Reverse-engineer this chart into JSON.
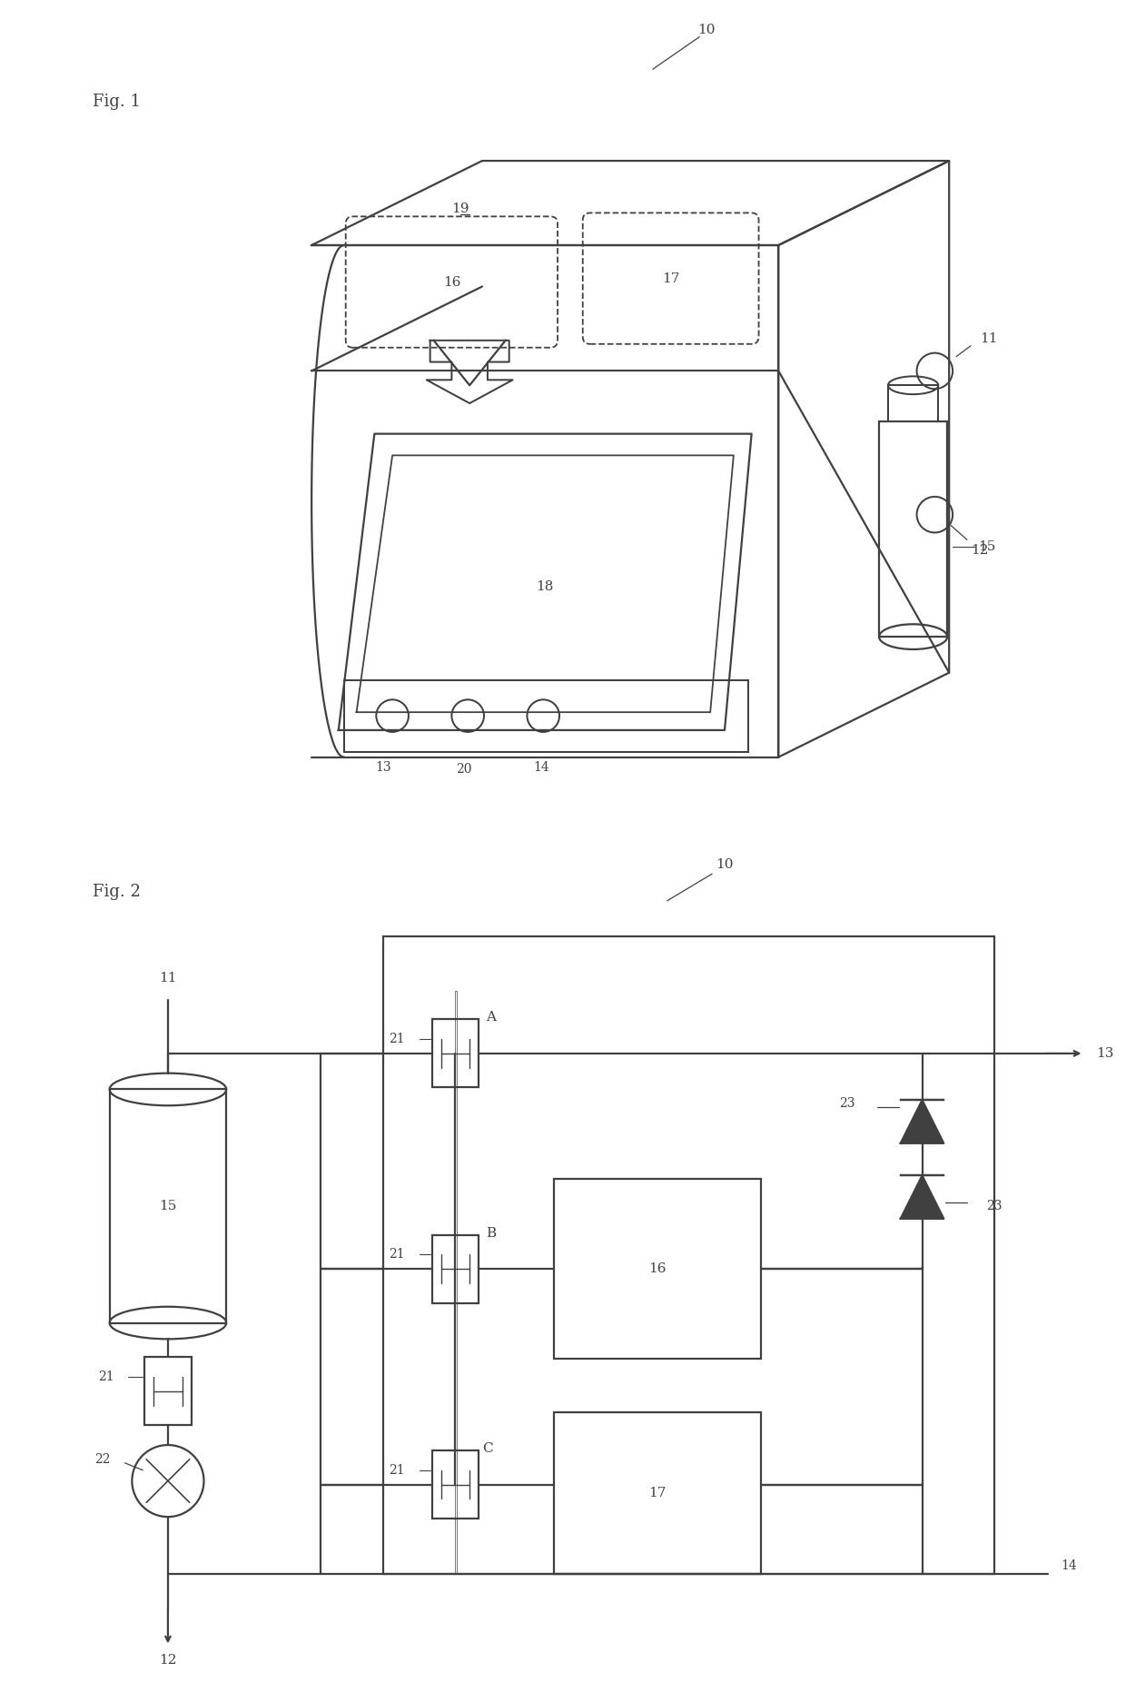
{
  "bg": "#ffffff",
  "lc": "#404040",
  "lw": 1.6,
  "fs": 12,
  "fig1_label": "Fig. 1",
  "fig2_label": "Fig. 2",
  "refs": {
    "10a": "10",
    "11a": "11",
    "12a": "12",
    "13a": "13",
    "14a": "14",
    "15a": "15",
    "16a": "16",
    "17a": "17",
    "18a": "18",
    "19a": "19",
    "20a": "20",
    "10b": "10",
    "11b": "11",
    "12b": "12",
    "13b": "13",
    "14b": "14",
    "15b": "15",
    "16b": "16",
    "17b": "17",
    "21a": "21",
    "21b": "21",
    "21c": "21",
    "21d": "21",
    "22": "22",
    "23a": "23",
    "23b": "23",
    "A": "A",
    "B": "B",
    "C": "C"
  }
}
